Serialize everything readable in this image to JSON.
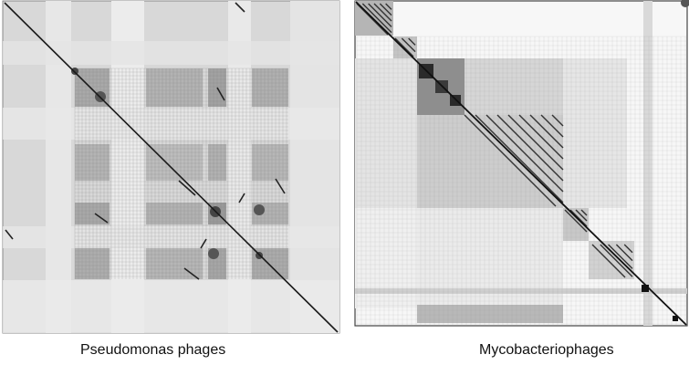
{
  "figure": {
    "panels": [
      {
        "caption": "Pseudomonas phages",
        "tone": "#d4d4d4",
        "line": "#1a1a1a"
      },
      {
        "caption": "Mycobacteriophages",
        "tone": "#f2f2f2",
        "line": "#111111"
      }
    ]
  }
}
